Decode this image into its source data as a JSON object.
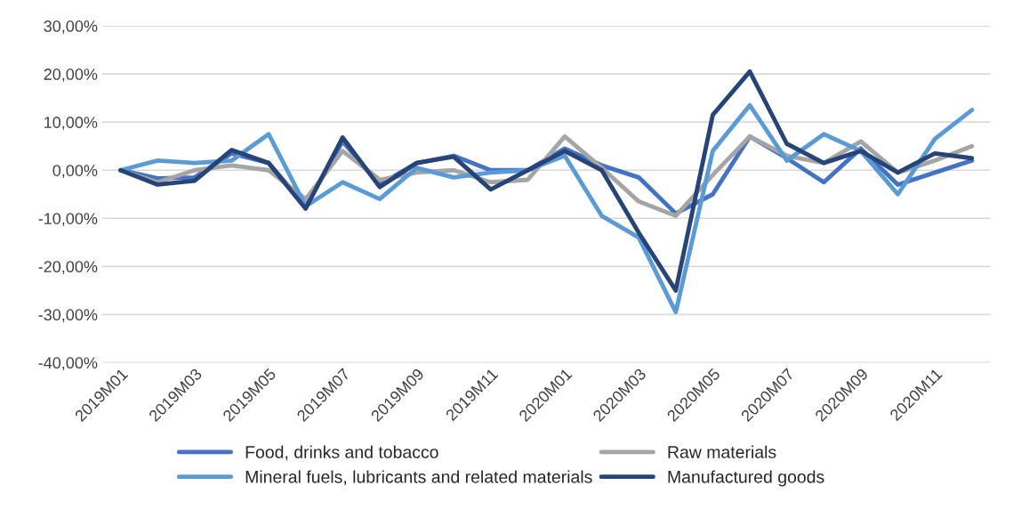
{
  "chart_data": {
    "type": "line",
    "categories": [
      "2019M01",
      null,
      "2019M03",
      null,
      "2019M05",
      null,
      "2019M07",
      null,
      "2019M09",
      null,
      "2019M11",
      null,
      "2020M01",
      null,
      "2020M03",
      null,
      "2020M05",
      null,
      "2020M07",
      null,
      "2020M09",
      null,
      "2020M11",
      null
    ],
    "series": [
      {
        "name": "Food, drinks and tobacco",
        "color": "#4472c4",
        "values": [
          0,
          -1.7,
          -1.5,
          3.5,
          1.5,
          -7.5,
          6,
          -3,
          1.5,
          3,
          0,
          0,
          4.5,
          1,
          -1.5,
          -9,
          -5,
          7,
          2.5,
          -2.5,
          4.5,
          -3,
          -0.5,
          2
        ]
      },
      {
        "name": "Raw materials",
        "color": "#a5a5a5",
        "values": [
          0,
          -2.5,
          0,
          1,
          0,
          -6,
          4,
          -2,
          -0.5,
          0,
          -2.5,
          -2,
          7,
          0.5,
          -6.5,
          -9.5,
          -1,
          7,
          3,
          1.5,
          6,
          -0.5,
          2,
          5
        ]
      },
      {
        "name": "Mineral fuels, lubricants and related materials",
        "color": "#5b9bd5",
        "values": [
          0,
          2,
          1.5,
          2,
          7.5,
          -7.5,
          -2.5,
          -6,
          0.5,
          -1.5,
          -0.5,
          0,
          3,
          -9.5,
          -14,
          -29.5,
          4,
          13.5,
          2,
          7.5,
          4,
          -5,
          6.5,
          12.5
        ]
      },
      {
        "name": "Manufactured goods",
        "color": "#264478",
        "values": [
          0,
          -3,
          -2.2,
          4.2,
          1.5,
          -8,
          6.8,
          -3.5,
          1.5,
          2.8,
          -4,
          0,
          4,
          0,
          -13,
          -25,
          11.5,
          20.5,
          5.5,
          1.5,
          4,
          -0.5,
          3.5,
          2.5
        ]
      }
    ],
    "ylim": [
      -40,
      30
    ],
    "yticks": [
      {
        "value": -40,
        "label": "-40,00%"
      },
      {
        "value": -30,
        "label": "-30,00%"
      },
      {
        "value": -20,
        "label": "-20,00%"
      },
      {
        "value": -10,
        "label": "-10,00%"
      },
      {
        "value": 0,
        "label": "0,00%"
      },
      {
        "value": 10,
        "label": "10,00%"
      },
      {
        "value": 20,
        "label": "20,00%"
      },
      {
        "value": 30,
        "label": "30,00%"
      }
    ],
    "grid": "y",
    "legend": "bottom",
    "marker": "none",
    "line_style": "solid"
  }
}
